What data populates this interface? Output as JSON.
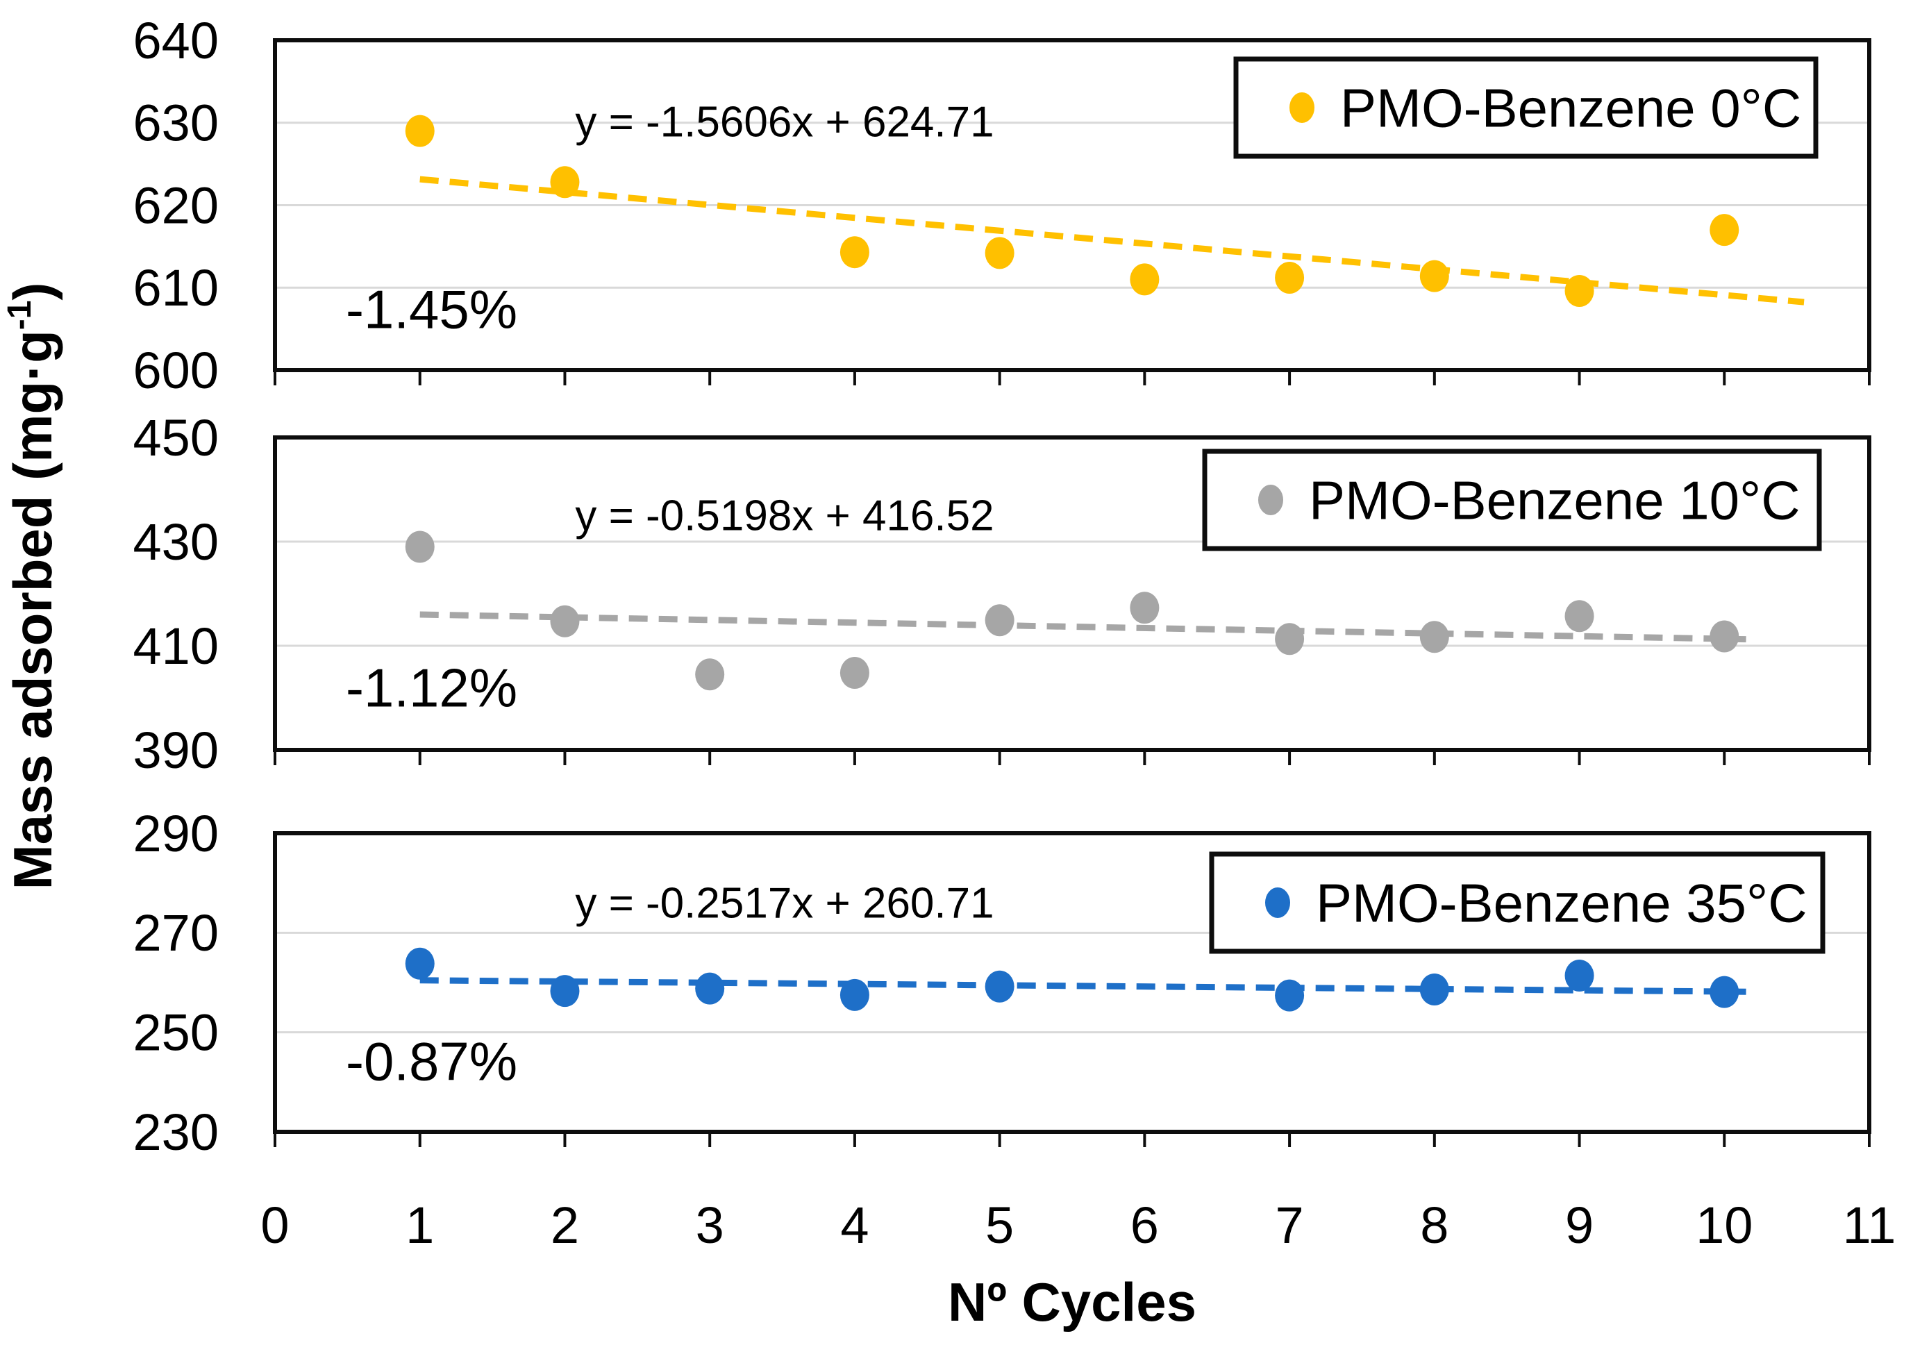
{
  "figure": {
    "background": "#ffffff",
    "x_axis": {
      "title": "Nº Cycles",
      "ticks": [
        0,
        1,
        2,
        3,
        4,
        5,
        6,
        7,
        8,
        9,
        10,
        11
      ],
      "range": [
        0,
        11
      ]
    },
    "y_axis": {
      "title": "Mass adsorbed (mg·g⁻¹)"
    },
    "colors": {
      "series_0c": "#FFC000",
      "series_10c": "#A6A6A6",
      "series_35c": "#1E6FC8",
      "gridline": "#D9D9D9",
      "frame": "#0D0D0D",
      "text": "#000000",
      "legend_background": "#FFFFFF"
    }
  },
  "chart_data": [
    {
      "type": "scatter",
      "series_name": "PMO-Benzene 0°C",
      "legend": "PMO-Benzene 0°C",
      "color": "#FFC000",
      "x": [
        1,
        2,
        4,
        5,
        6,
        7,
        8,
        9,
        10
      ],
      "y": [
        629.0,
        622.8,
        614.3,
        614.2,
        611.0,
        611.2,
        611.4,
        609.6,
        617.0
      ],
      "ylim": [
        600,
        640
      ],
      "yticks": [
        600,
        610,
        620,
        630,
        640
      ],
      "xlim": [
        0,
        11
      ],
      "grid": true,
      "legend_position": "top-right",
      "trendline": {
        "style": "dashed",
        "slope": -1.5606,
        "intercept": 624.71,
        "equation": "y = -1.5606x + 624.71",
        "x_range": [
          1.0,
          10.55
        ]
      },
      "annotation": "-1.45%"
    },
    {
      "type": "scatter",
      "series_name": "PMO-Benzene 10°C",
      "legend": "PMO-Benzene 10°C",
      "color": "#A6A6A6",
      "x": [
        1,
        2,
        3,
        4,
        5,
        6,
        7,
        8,
        9,
        10
      ],
      "y": [
        429.0,
        414.7,
        404.5,
        404.8,
        414.9,
        417.3,
        411.3,
        411.7,
        415.7,
        411.8
      ],
      "ylim": [
        390,
        450
      ],
      "yticks": [
        390,
        410,
        430,
        450
      ],
      "xlim": [
        0,
        11
      ],
      "grid": true,
      "legend_position": "top-right",
      "trendline": {
        "style": "dashed",
        "slope": -0.5198,
        "intercept": 416.52,
        "equation": "y = -0.5198x + 416.52",
        "x_range": [
          1.0,
          10.15
        ]
      },
      "annotation": "-1.12%"
    },
    {
      "type": "scatter",
      "series_name": "PMO-Benzene 35°C",
      "legend": "PMO-Benzene 35°C",
      "color": "#1E6FC8",
      "x": [
        1,
        2,
        3,
        4,
        5,
        7,
        8,
        9,
        10
      ],
      "y": [
        263.8,
        258.3,
        258.8,
        257.5,
        259.2,
        257.4,
        258.6,
        261.4,
        258.1
      ],
      "ylim": [
        230,
        290
      ],
      "yticks": [
        230,
        250,
        270,
        290
      ],
      "xlim": [
        0,
        11
      ],
      "grid": true,
      "legend_position": "top-right",
      "trendline": {
        "style": "dashed",
        "slope": -0.2517,
        "intercept": 260.71,
        "equation": "y = -0.2517x + 260.71",
        "x_range": [
          1.0,
          10.15
        ]
      },
      "annotation": "-0.87%"
    }
  ]
}
